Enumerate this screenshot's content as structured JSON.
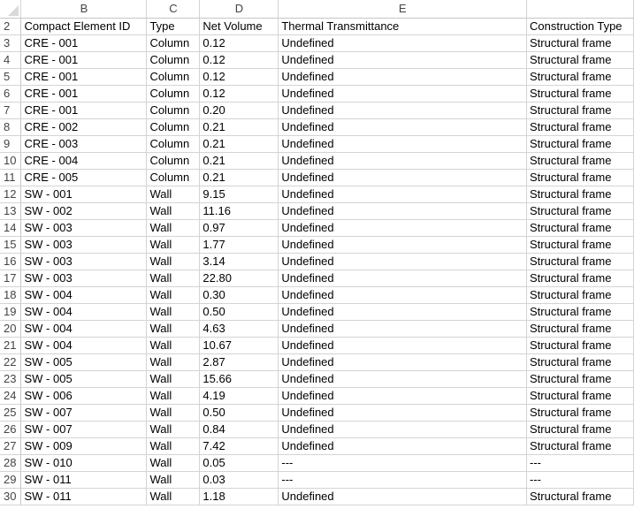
{
  "column_letters": [
    "B",
    "C",
    "D",
    "E",
    ""
  ],
  "header_row": {
    "num": "2",
    "cells": [
      "Compact Element ID",
      "Type",
      "Net Volume",
      "Thermal Transmittance",
      "Construction Type"
    ]
  },
  "rows": [
    {
      "num": "3",
      "cells": [
        "CRE - 001",
        "Column",
        "0.12",
        "Undefined",
        "Structural frame"
      ]
    },
    {
      "num": "4",
      "cells": [
        "CRE - 001",
        "Column",
        "0.12",
        "Undefined",
        "Structural frame"
      ]
    },
    {
      "num": "5",
      "cells": [
        "CRE - 001",
        "Column",
        "0.12",
        "Undefined",
        "Structural frame"
      ]
    },
    {
      "num": "6",
      "cells": [
        "CRE - 001",
        "Column",
        "0.12",
        "Undefined",
        "Structural frame"
      ]
    },
    {
      "num": "7",
      "cells": [
        "CRE - 001",
        "Column",
        "0.20",
        "Undefined",
        "Structural frame"
      ]
    },
    {
      "num": "8",
      "cells": [
        "CRE - 002",
        "Column",
        "0.21",
        "Undefined",
        "Structural frame"
      ]
    },
    {
      "num": "9",
      "cells": [
        "CRE - 003",
        "Column",
        "0.21",
        "Undefined",
        "Structural frame"
      ]
    },
    {
      "num": "10",
      "cells": [
        "CRE - 004",
        "Column",
        "0.21",
        "Undefined",
        "Structural frame"
      ]
    },
    {
      "num": "11",
      "cells": [
        "CRE - 005",
        "Column",
        "0.21",
        "Undefined",
        "Structural frame"
      ]
    },
    {
      "num": "12",
      "cells": [
        "SW - 001",
        "Wall",
        "9.15",
        "Undefined",
        "Structural frame"
      ]
    },
    {
      "num": "13",
      "cells": [
        "SW - 002",
        "Wall",
        "11.16",
        "Undefined",
        "Structural frame"
      ]
    },
    {
      "num": "14",
      "cells": [
        "SW - 003",
        "Wall",
        "0.97",
        "Undefined",
        "Structural frame"
      ]
    },
    {
      "num": "15",
      "cells": [
        "SW - 003",
        "Wall",
        "1.77",
        "Undefined",
        "Structural frame"
      ]
    },
    {
      "num": "16",
      "cells": [
        "SW - 003",
        "Wall",
        "3.14",
        "Undefined",
        "Structural frame"
      ]
    },
    {
      "num": "17",
      "cells": [
        "SW - 003",
        "Wall",
        "22.80",
        "Undefined",
        "Structural frame"
      ]
    },
    {
      "num": "18",
      "cells": [
        "SW - 004",
        "Wall",
        "0.30",
        "Undefined",
        "Structural frame"
      ]
    },
    {
      "num": "19",
      "cells": [
        "SW - 004",
        "Wall",
        "0.50",
        "Undefined",
        "Structural frame"
      ]
    },
    {
      "num": "20",
      "cells": [
        "SW - 004",
        "Wall",
        "4.63",
        "Undefined",
        "Structural frame"
      ]
    },
    {
      "num": "21",
      "cells": [
        "SW - 004",
        "Wall",
        "10.67",
        "Undefined",
        "Structural frame"
      ]
    },
    {
      "num": "22",
      "cells": [
        "SW - 005",
        "Wall",
        "2.87",
        "Undefined",
        "Structural frame"
      ]
    },
    {
      "num": "23",
      "cells": [
        "SW - 005",
        "Wall",
        "15.66",
        "Undefined",
        "Structural frame"
      ]
    },
    {
      "num": "24",
      "cells": [
        "SW - 006",
        "Wall",
        "4.19",
        "Undefined",
        "Structural frame"
      ]
    },
    {
      "num": "25",
      "cells": [
        "SW - 007",
        "Wall",
        "0.50",
        "Undefined",
        "Structural frame"
      ]
    },
    {
      "num": "26",
      "cells": [
        "SW - 007",
        "Wall",
        "0.84",
        "Undefined",
        "Structural frame"
      ]
    },
    {
      "num": "27",
      "cells": [
        "SW - 009",
        "Wall",
        "7.42",
        "Undefined",
        "Structural frame"
      ]
    },
    {
      "num": "28",
      "cells": [
        "SW - 010",
        "Wall",
        "0.05",
        "---",
        "---"
      ]
    },
    {
      "num": "29",
      "cells": [
        "SW - 011",
        "Wall",
        "0.03",
        "---",
        "---"
      ]
    },
    {
      "num": "30",
      "cells": [
        "SW - 011",
        "Wall",
        "1.18",
        "Undefined",
        "Structural frame"
      ]
    }
  ]
}
